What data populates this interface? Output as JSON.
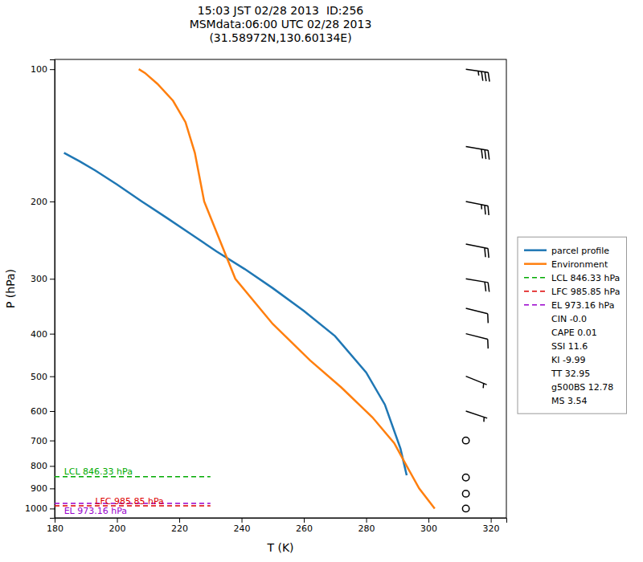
{
  "chart_data": {
    "type": "line",
    "title": "15:03 JST 02/28 2013  ID:256\nMSMdata:06:00 UTC 02/28 2013\n(31.58972N,130.60134E)",
    "xlabel": "T (K)",
    "ylabel": "P (hPa)",
    "log": "y",
    "grid": false,
    "legend": "right",
    "xlim": [
      180,
      325
    ],
    "xticks": [
      180,
      200,
      220,
      240,
      260,
      280,
      300,
      320
    ],
    "ylim": [
      1050,
      95
    ],
    "yticks": [
      100,
      200,
      300,
      400,
      500,
      600,
      700,
      800,
      900,
      1000
    ],
    "series": [
      {
        "name": "parcel profile",
        "color": "#1f77b4",
        "line_style": "solid",
        "x": [
          183,
          188,
          193,
          200,
          208,
          216,
          224,
          232,
          241,
          250,
          260,
          270,
          280,
          286,
          291,
          293
        ],
        "values": [
          155,
          162,
          170,
          183,
          200,
          218,
          238,
          260,
          285,
          315,
          355,
          405,
          490,
          580,
          730,
          840
        ]
      },
      {
        "name": "Environment",
        "color": "#ff7f0e",
        "line_style": "solid",
        "x": [
          207,
          209,
          213,
          218,
          222,
          225,
          228,
          238,
          250,
          262,
          272,
          282,
          289,
          293,
          297,
          302
        ],
        "values": [
          100,
          102,
          108,
          118,
          132,
          155,
          200,
          300,
          380,
          460,
          530,
          620,
          710,
          800,
          900,
          1000
        ]
      },
      {
        "name": "LCL 846.33 hPa",
        "color": "#00aa00",
        "line_style": "dashed",
        "x": [
          180,
          230
        ],
        "values": [
          846.33,
          846.33
        ]
      },
      {
        "name": "LFC 985.85 hPa",
        "color": "#dd0000",
        "line_style": "dashed",
        "x": [
          180,
          230
        ],
        "values": [
          985.85,
          985.85
        ]
      },
      {
        "name": "EL 973.16 hPa",
        "color": "#9900cc",
        "line_style": "dashed",
        "x": [
          180,
          230
        ],
        "values": [
          973.16,
          973.16
        ]
      }
    ],
    "annotations": [
      {
        "text": "LCL 846.33 hPa",
        "x": 183,
        "y": 841.33,
        "color": "#00aa00"
      },
      {
        "text": "EL 973.16 hPa",
        "x": 183,
        "y": 993.85,
        "color": "#9900cc"
      },
      {
        "text": "LFC 985.85 hPa",
        "x": 193,
        "y": 982.85,
        "color": "#dd0000"
      }
    ],
    "wind": {
      "x": 312,
      "pressures": [
        100,
        150,
        200,
        250,
        300,
        350,
        400,
        500,
        600,
        700,
        850,
        925,
        1000
      ],
      "u": [
        -35,
        -30,
        -25,
        -20,
        -18,
        -12,
        -8,
        -5,
        -3,
        -2,
        0,
        0,
        2
      ],
      "v": [
        5,
        5,
        5,
        4,
        3,
        3,
        2,
        2,
        1,
        1,
        1,
        0,
        1
      ],
      "color": "#000000"
    },
    "text_entries": [
      "CIN -0.0",
      "CAPE 0.01",
      "SSI 11.6",
      "KI -9.99",
      "TT 32.95",
      "g500BS 12.78",
      "MS 3.54"
    ]
  }
}
